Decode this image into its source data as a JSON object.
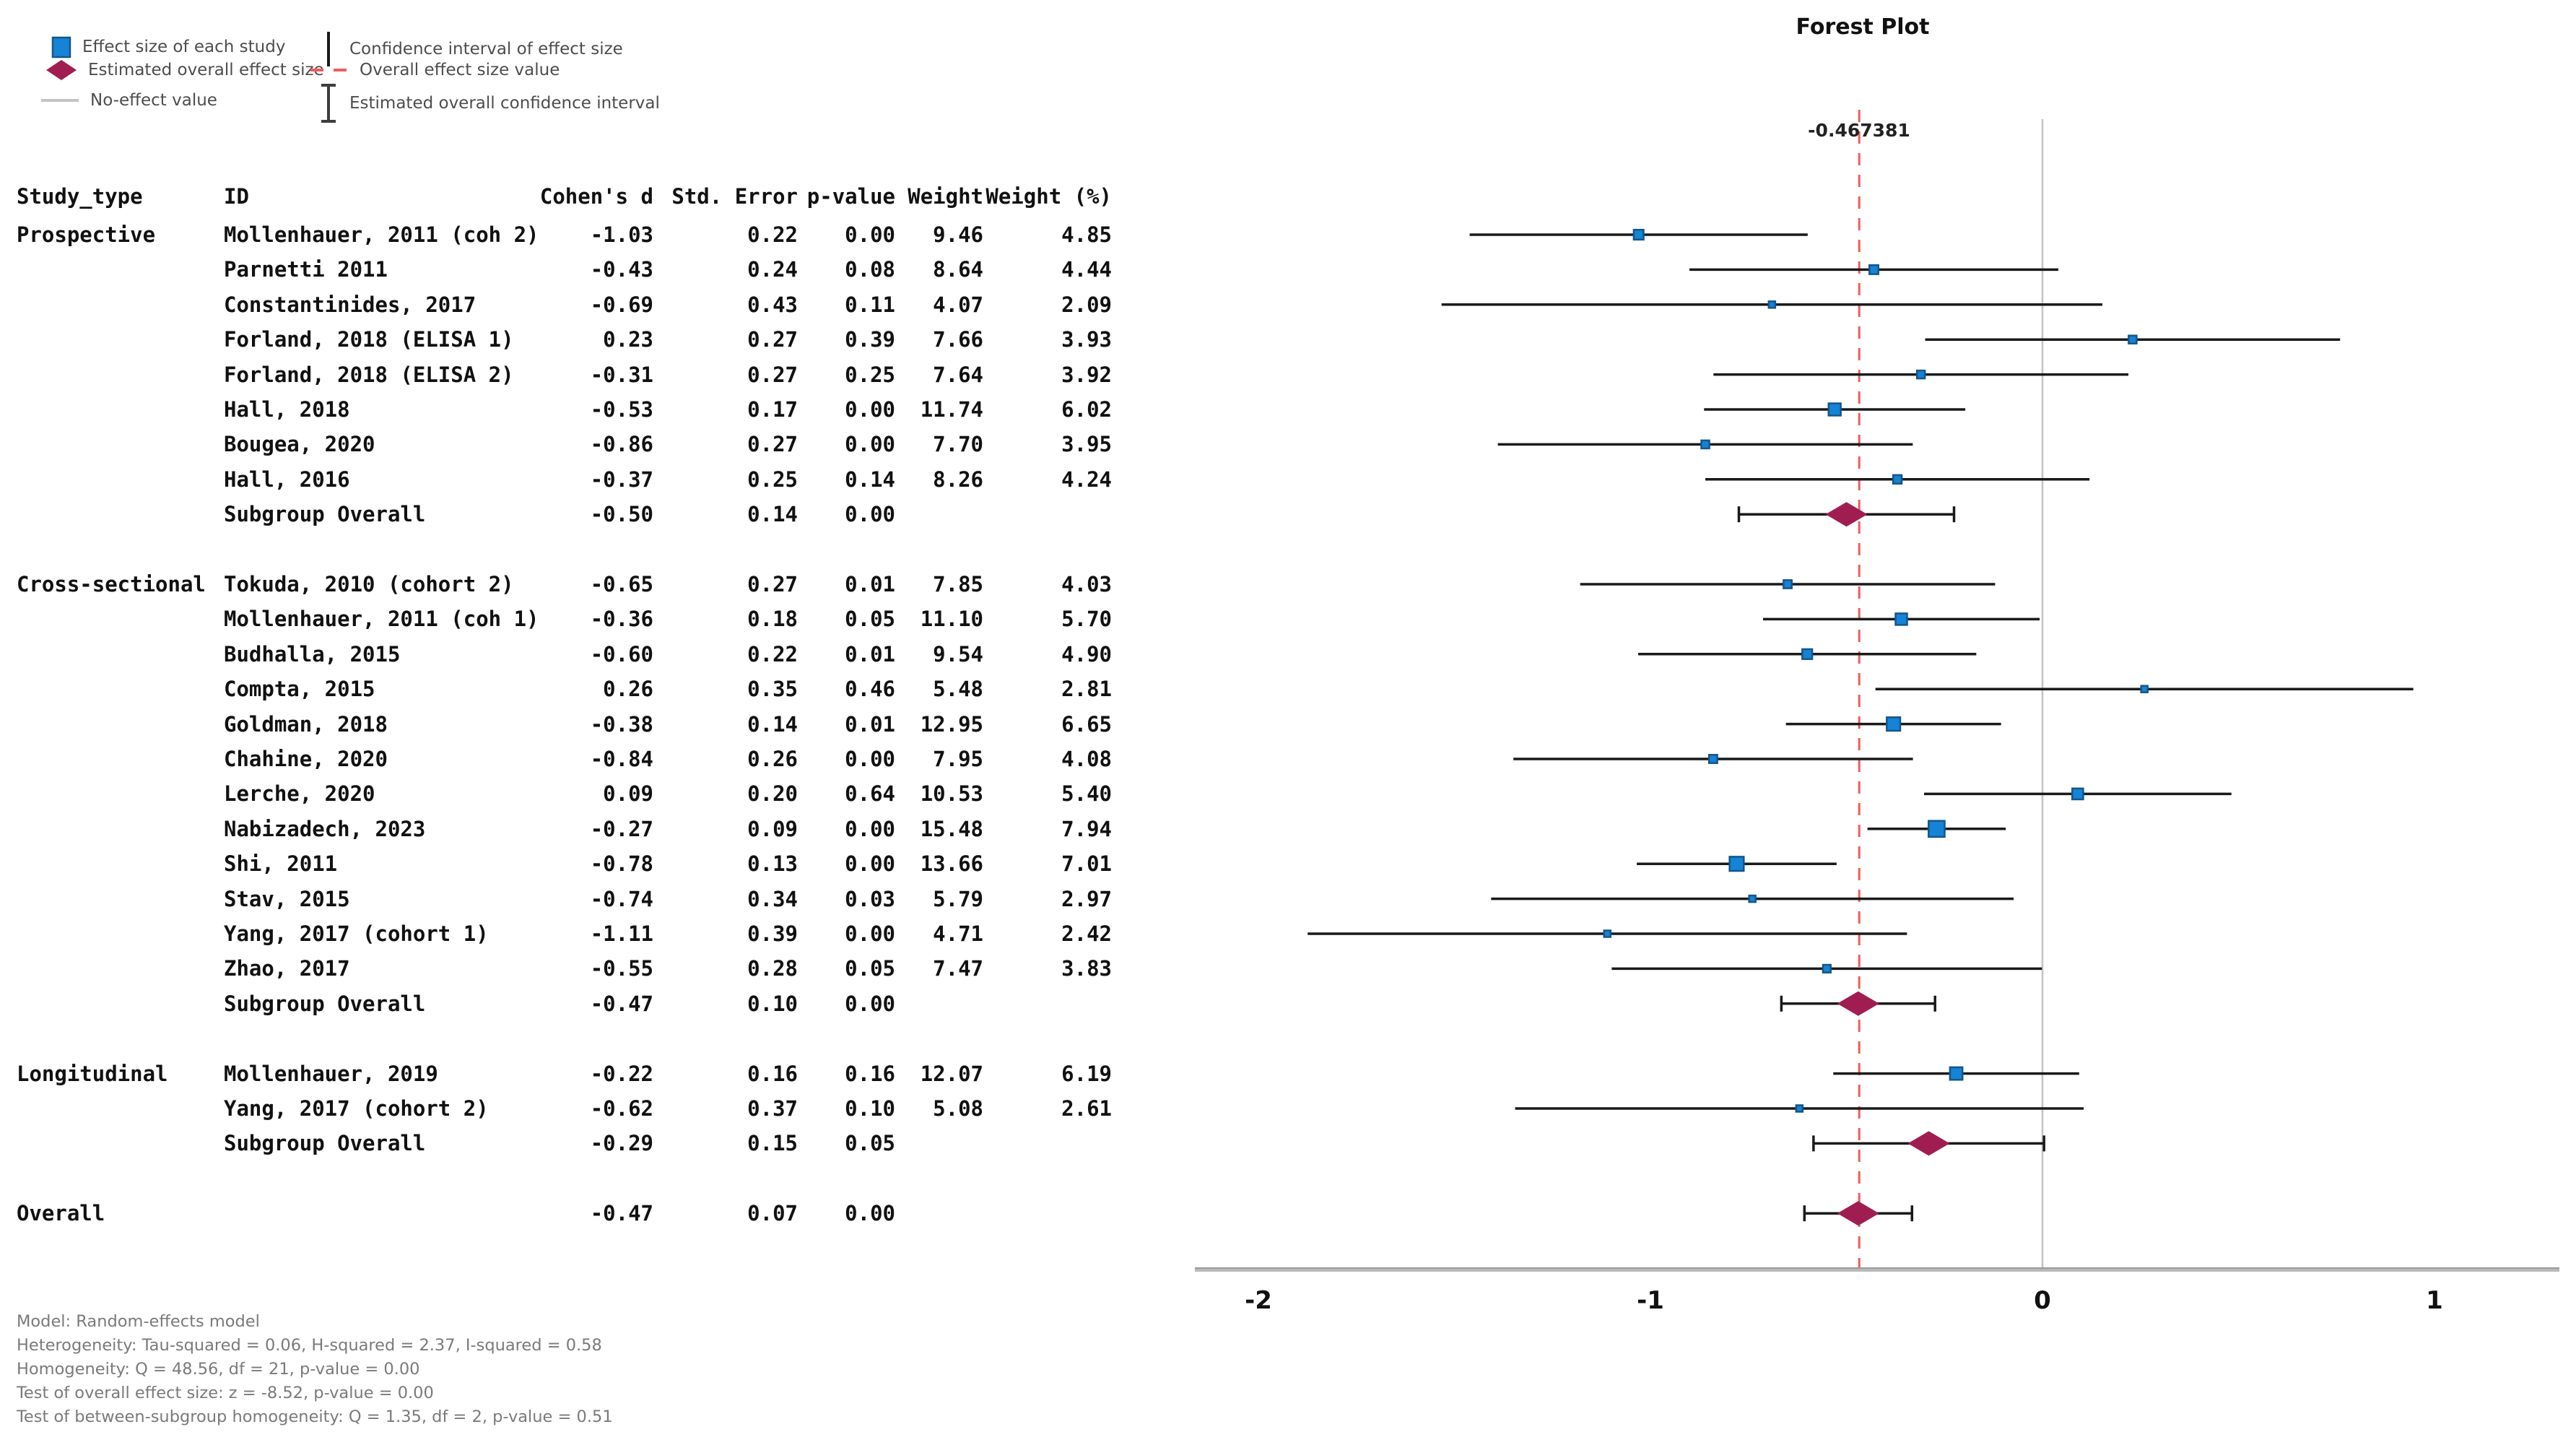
{
  "title": "Forest Plot",
  "legend": {
    "items": [
      {
        "icon": "blue-square",
        "label": "Effect size of each study"
      },
      {
        "icon": "crimson-diamond",
        "label": "Estimated overall effect size"
      },
      {
        "icon": "gray-line",
        "label": "No-effect value"
      },
      {
        "icon": "black-vertical-bar",
        "label": "Confidence interval of effect size"
      },
      {
        "icon": "red-dashed-line",
        "label": "Overall effect size value"
      },
      {
        "icon": "ibeam",
        "label": "Estimated overall confidence interval"
      }
    ]
  },
  "chart_data": {
    "type": "forest",
    "title": "Forest Plot",
    "overall_effect_value": -0.467381,
    "overall_effect_label": "-0.467381",
    "no_effect_value": 0,
    "ci_multiplier": 1.96,
    "x_ticks": [
      "-2",
      "-1",
      "0",
      "1"
    ],
    "x_tick_values": [
      -2,
      -1,
      0,
      1
    ],
    "x_range": [
      -2.16,
      1.32
    ],
    "columns": [
      "Study_type",
      "ID",
      "Cohen's d",
      "Std. Error",
      "p-value",
      "Weight",
      "Weight (%)"
    ],
    "subgroup_row_label": "Subgroup Overall",
    "groups": [
      {
        "label": "Prospective",
        "studies": [
          {
            "id": "Mollenhauer, 2011 (coh 2)",
            "cohens_d": "-1.03",
            "std_error": "0.22",
            "p_value": "0.00",
            "weight": "9.46",
            "weight_pct": "4.85"
          },
          {
            "id": "Parnetti 2011",
            "cohens_d": "-0.43",
            "std_error": "0.24",
            "p_value": "0.08",
            "weight": "8.64",
            "weight_pct": "4.44"
          },
          {
            "id": "Constantinides, 2017",
            "cohens_d": "-0.69",
            "std_error": "0.43",
            "p_value": "0.11",
            "weight": "4.07",
            "weight_pct": "2.09"
          },
          {
            "id": "Forland, 2018 (ELISA 1)",
            "cohens_d": "0.23",
            "std_error": "0.27",
            "p_value": "0.39",
            "weight": "7.66",
            "weight_pct": "3.93"
          },
          {
            "id": "Forland, 2018 (ELISA 2)",
            "cohens_d": "-0.31",
            "std_error": "0.27",
            "p_value": "0.25",
            "weight": "7.64",
            "weight_pct": "3.92"
          },
          {
            "id": "Hall, 2018",
            "cohens_d": "-0.53",
            "std_error": "0.17",
            "p_value": "0.00",
            "weight": "11.74",
            "weight_pct": "6.02"
          },
          {
            "id": "Bougea, 2020",
            "cohens_d": "-0.86",
            "std_error": "0.27",
            "p_value": "0.00",
            "weight": "7.70",
            "weight_pct": "3.95"
          },
          {
            "id": "Hall, 2016",
            "cohens_d": "-0.37",
            "std_error": "0.25",
            "p_value": "0.14",
            "weight": "8.26",
            "weight_pct": "4.24"
          }
        ],
        "subgroup": {
          "cohens_d": "-0.50",
          "std_error": "0.14",
          "p_value": "0.00"
        }
      },
      {
        "label": "Cross-sectional",
        "studies": [
          {
            "id": "Tokuda, 2010 (cohort 2)",
            "cohens_d": "-0.65",
            "std_error": "0.27",
            "p_value": "0.01",
            "weight": "7.85",
            "weight_pct": "4.03"
          },
          {
            "id": "Mollenhauer, 2011 (coh 1)",
            "cohens_d": "-0.36",
            "std_error": "0.18",
            "p_value": "0.05",
            "weight": "11.10",
            "weight_pct": "5.70"
          },
          {
            "id": "Budhalla, 2015",
            "cohens_d": "-0.60",
            "std_error": "0.22",
            "p_value": "0.01",
            "weight": "9.54",
            "weight_pct": "4.90"
          },
          {
            "id": "Compta, 2015",
            "cohens_d": "0.26",
            "std_error": "0.35",
            "p_value": "0.46",
            "weight": "5.48",
            "weight_pct": "2.81"
          },
          {
            "id": "Goldman, 2018",
            "cohens_d": "-0.38",
            "std_error": "0.14",
            "p_value": "0.01",
            "weight": "12.95",
            "weight_pct": "6.65"
          },
          {
            "id": "Chahine, 2020",
            "cohens_d": "-0.84",
            "std_error": "0.26",
            "p_value": "0.00",
            "weight": "7.95",
            "weight_pct": "4.08"
          },
          {
            "id": "Lerche, 2020",
            "cohens_d": "0.09",
            "std_error": "0.20",
            "p_value": "0.64",
            "weight": "10.53",
            "weight_pct": "5.40"
          },
          {
            "id": "Nabizadech, 2023",
            "cohens_d": "-0.27",
            "std_error": "0.09",
            "p_value": "0.00",
            "weight": "15.48",
            "weight_pct": "7.94"
          },
          {
            "id": "Shi, 2011",
            "cohens_d": "-0.78",
            "std_error": "0.13",
            "p_value": "0.00",
            "weight": "13.66",
            "weight_pct": "7.01"
          },
          {
            "id": "Stav, 2015",
            "cohens_d": "-0.74",
            "std_error": "0.34",
            "p_value": "0.03",
            "weight": "5.79",
            "weight_pct": "2.97"
          },
          {
            "id": "Yang, 2017 (cohort 1)",
            "cohens_d": "-1.11",
            "std_error": "0.39",
            "p_value": "0.00",
            "weight": "4.71",
            "weight_pct": "2.42"
          },
          {
            "id": "Zhao, 2017",
            "cohens_d": "-0.55",
            "std_error": "0.28",
            "p_value": "0.05",
            "weight": "7.47",
            "weight_pct": "3.83"
          }
        ],
        "subgroup": {
          "cohens_d": "-0.47",
          "std_error": "0.10",
          "p_value": "0.00"
        }
      },
      {
        "label": "Longitudinal",
        "studies": [
          {
            "id": "Mollenhauer, 2019",
            "cohens_d": "-0.22",
            "std_error": "0.16",
            "p_value": "0.16",
            "weight": "12.07",
            "weight_pct": "6.19"
          },
          {
            "id": "Yang, 2017 (cohort 2)",
            "cohens_d": "-0.62",
            "std_error": "0.37",
            "p_value": "0.10",
            "weight": "5.08",
            "weight_pct": "2.61"
          }
        ],
        "subgroup": {
          "cohens_d": "-0.29",
          "std_error": "0.15",
          "p_value": "0.05"
        }
      }
    ],
    "overall": {
      "label": "Overall",
      "cohens_d": "-0.47",
      "std_error": "0.07",
      "p_value": "0.00"
    },
    "notes": [
      "Model: Random-effects model",
      "Heterogeneity: Tau-squared = 0.06, H-squared = 2.37, I-squared = 0.58",
      "Homogeneity: Q = 48.56, df = 21, p-value = 0.00",
      "Test of overall effect size: z = -8.52, p-value = 0.00",
      "Test of between-subgroup homogeneity: Q = 1.35, df = 2, p-value = 0.51"
    ],
    "colors": {
      "study_marker": "#1583d6",
      "study_marker_border": "#14568a",
      "diamond": "#a01d52",
      "ci_line": "#1a1a1a",
      "no_effect_line": "#c4c4c4",
      "overall_line": "#f15b5b",
      "axis": "#b9b9b9",
      "axis_edge": "#8f8f8f",
      "tick_text": "#111111"
    },
    "legend_position": "top-left",
    "grid": false
  }
}
